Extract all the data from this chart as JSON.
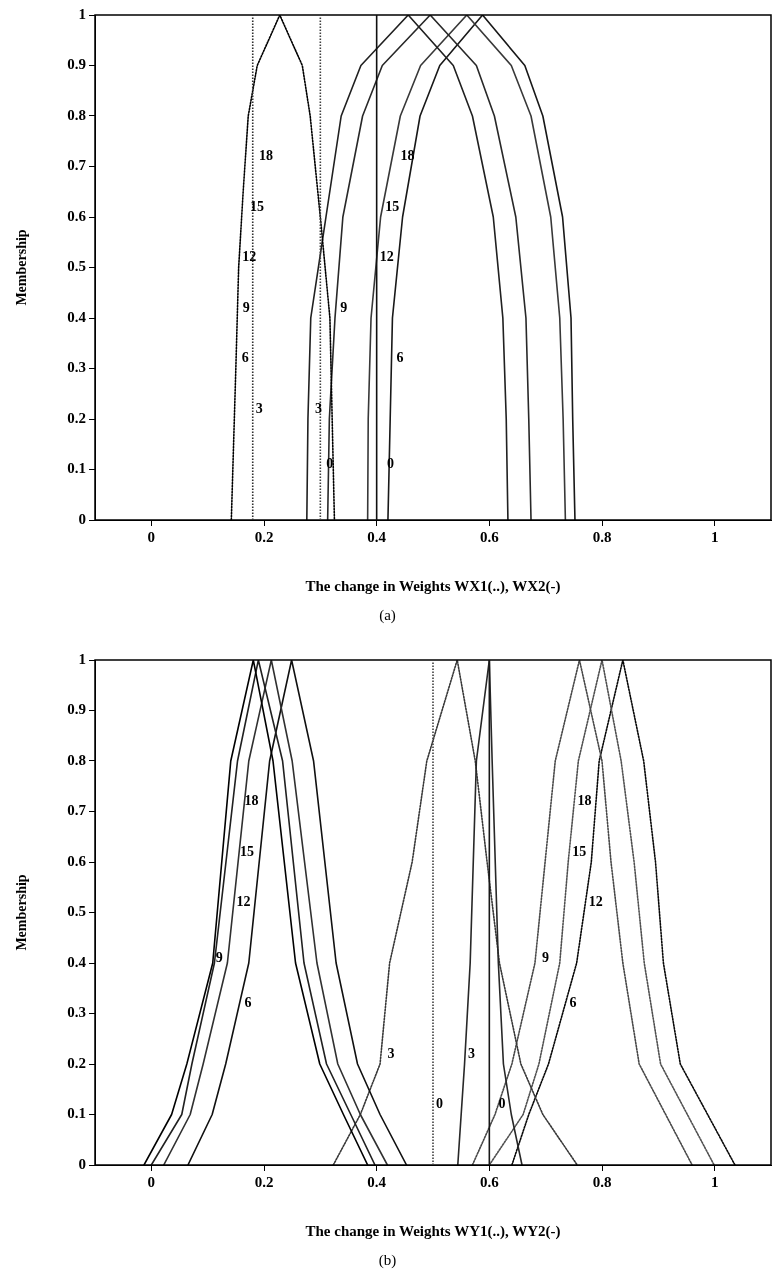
{
  "chart_data": [
    {
      "type": "line",
      "xlabel": "The change in Weights WX1(..), WX2(-)",
      "ylabel": "Membership",
      "xlim": [
        -0.1,
        1.1
      ],
      "ylim": [
        0,
        1
      ],
      "xticks": [
        0,
        0.2,
        0.4,
        0.6,
        0.8,
        1
      ],
      "yticks": [
        0,
        0.1,
        0.2,
        0.3,
        0.4,
        0.5,
        0.6,
        0.7,
        0.8,
        0.9,
        1
      ],
      "series": [
        {
          "color": "#000000",
          "line_style": "dotted",
          "x": [
            0.142,
            0.15,
            0.155,
            0.163,
            0.172,
            0.188,
            0.228,
            0.268,
            0.282,
            0.3,
            0.317,
            0.325
          ],
          "values": [
            0,
            0.3,
            0.5,
            0.65,
            0.8,
            0.9,
            1,
            0.9,
            0.8,
            0.6,
            0.4,
            0
          ]
        },
        {
          "color": "#202020",
          "line_style": "solid",
          "x": [
            0.276,
            0.278,
            0.283,
            0.31,
            0.337,
            0.372,
            0.456,
            0.536,
            0.57,
            0.607,
            0.624,
            0.63,
            0.633
          ],
          "values": [
            0,
            0.2,
            0.4,
            0.6,
            0.8,
            0.9,
            1,
            0.9,
            0.8,
            0.6,
            0.4,
            0.2,
            0
          ]
        },
        {
          "color": "#282828",
          "line_style": "solid",
          "x": [
            0.313,
            0.316,
            0.326,
            0.34,
            0.375,
            0.41,
            0.495,
            0.577,
            0.609,
            0.647,
            0.665,
            0.67,
            0.674
          ],
          "values": [
            0,
            0.2,
            0.4,
            0.6,
            0.8,
            0.9,
            1,
            0.9,
            0.8,
            0.6,
            0.4,
            0.2,
            0
          ]
        },
        {
          "color": "#383838",
          "line_style": "solid",
          "x": [
            0.384,
            0.385,
            0.39,
            0.407,
            0.442,
            0.478,
            0.56,
            0.639,
            0.674,
            0.709,
            0.725,
            0.731,
            0.735
          ],
          "values": [
            0,
            0.2,
            0.4,
            0.6,
            0.8,
            0.9,
            1,
            0.9,
            0.8,
            0.6,
            0.4,
            0.2,
            0
          ]
        },
        {
          "color": "#181818",
          "line_style": "solid",
          "x": [
            0.42,
            0.424,
            0.428,
            0.446,
            0.477,
            0.512,
            0.588,
            0.663,
            0.695,
            0.73,
            0.745,
            0.748,
            0.752
          ],
          "values": [
            0,
            0.2,
            0.4,
            0.6,
            0.8,
            0.9,
            1,
            0.9,
            0.8,
            0.6,
            0.4,
            0.2,
            0
          ]
        }
      ],
      "ref_lines": [
        {
          "axis": "x",
          "value": 0.18,
          "color": "#303030",
          "line_style": "dotted"
        },
        {
          "axis": "x",
          "value": 0.3,
          "color": "#404040",
          "line_style": "dotted"
        },
        {
          "axis": "x",
          "value": 0.4,
          "color": "#101010",
          "line_style": "solid"
        }
      ],
      "annotations": [
        {
          "text": "18",
          "x": 0.186,
          "y": 0.72
        },
        {
          "text": "15",
          "x": 0.17,
          "y": 0.62
        },
        {
          "text": "12",
          "x": 0.156,
          "y": 0.52
        },
        {
          "text": "9",
          "x": 0.157,
          "y": 0.42
        },
        {
          "text": "6",
          "x": 0.155,
          "y": 0.32
        },
        {
          "text": "3",
          "x": 0.18,
          "y": 0.22
        },
        {
          "text": "3",
          "x": 0.285,
          "y": 0.22
        },
        {
          "text": "0",
          "x": 0.305,
          "y": 0.11
        },
        {
          "text": "9",
          "x": 0.33,
          "y": 0.42
        },
        {
          "text": "18",
          "x": 0.437,
          "y": 0.72
        },
        {
          "text": "15",
          "x": 0.41,
          "y": 0.62
        },
        {
          "text": "12",
          "x": 0.4,
          "y": 0.52
        },
        {
          "text": "6",
          "x": 0.43,
          "y": 0.32
        },
        {
          "text": "0",
          "x": 0.413,
          "y": 0.11
        },
        "(a)"
      ]
    },
    {
      "type": "line",
      "xlabel": "The change in Weights WY1(..), WY2(-)",
      "ylabel": "Membership",
      "xlim": [
        -0.1,
        1.1
      ],
      "ylim": [
        0,
        1
      ],
      "xticks": [
        0,
        0.2,
        0.4,
        0.6,
        0.8,
        1
      ],
      "yticks": [
        0,
        0.1,
        0.2,
        0.3,
        0.4,
        0.5,
        0.6,
        0.7,
        0.8,
        0.9,
        1
      ],
      "series": [
        {
          "color": "#000000",
          "line_style": "solid",
          "x": [
            -0.013,
            0.036,
            0.063,
            0.109,
            0.141,
            0.181,
            0.216,
            0.256,
            0.299,
            0.341,
            0.384
          ],
          "values": [
            0,
            0.1,
            0.2,
            0.4,
            0.8,
            1,
            0.8,
            0.4,
            0.2,
            0.1,
            0
          ]
        },
        {
          "color": "#202020",
          "line_style": "solid",
          "x": [
            0,
            0.054,
            0.072,
            0.112,
            0.153,
            0.19,
            0.233,
            0.271,
            0.311,
            0.354,
            0.397
          ],
          "values": [
            0,
            0.1,
            0.2,
            0.4,
            0.8,
            1,
            0.8,
            0.4,
            0.2,
            0.1,
            0
          ]
        },
        {
          "color": "#303030",
          "line_style": "solid",
          "x": [
            0.022,
            0.069,
            0.092,
            0.135,
            0.173,
            0.213,
            0.25,
            0.294,
            0.331,
            0.371,
            0.419
          ],
          "values": [
            0,
            0.1,
            0.2,
            0.4,
            0.8,
            1,
            0.8,
            0.4,
            0.2,
            0.1,
            0
          ]
        },
        {
          "color": "#101010",
          "line_style": "solid",
          "x": [
            0.065,
            0.108,
            0.132,
            0.173,
            0.21,
            0.249,
            0.288,
            0.328,
            0.366,
            0.406,
            0.453
          ],
          "values": [
            0,
            0.1,
            0.2,
            0.4,
            0.8,
            1,
            0.8,
            0.4,
            0.2,
            0.1,
            0
          ]
        },
        {
          "color": "#282828",
          "line_style": "solid",
          "x": [
            0.544,
            0.556,
            0.566,
            0.577,
            0.6,
            0.605,
            0.616,
            0.625,
            0.639,
            0.658
          ],
          "values": [
            0,
            0.2,
            0.4,
            0.8,
            1,
            0.8,
            0.4,
            0.2,
            0.1,
            0
          ]
        },
        {
          "color": "#383838",
          "line_style": "dotted",
          "x": [
            0.323,
            0.371,
            0.406,
            0.423,
            0.463,
            0.489,
            0.543,
            0.575,
            0.596,
            0.618,
            0.656,
            0.695,
            0.756
          ],
          "values": [
            0,
            0.1,
            0.2,
            0.4,
            0.6,
            0.8,
            1,
            0.8,
            0.6,
            0.4,
            0.2,
            0.1,
            0
          ]
        },
        {
          "color": "#484848",
          "line_style": "dotted",
          "x": [
            0.57,
            0.61,
            0.64,
            0.681,
            0.699,
            0.717,
            0.76,
            0.8,
            0.816,
            0.837,
            0.866,
            0.96
          ],
          "values": [
            0,
            0.1,
            0.2,
            0.4,
            0.6,
            0.8,
            1,
            0.8,
            0.6,
            0.4,
            0.2,
            0
          ]
        },
        {
          "color": "#505050",
          "line_style": "dotted",
          "x": [
            0.6,
            0.66,
            0.688,
            0.725,
            0.74,
            0.758,
            0.8,
            0.834,
            0.857,
            0.875,
            0.904,
            0.999
          ],
          "values": [
            0,
            0.1,
            0.2,
            0.4,
            0.6,
            0.8,
            1,
            0.8,
            0.6,
            0.4,
            0.2,
            0
          ]
        },
        {
          "color": "#080808",
          "line_style": "dotted",
          "x": [
            0.64,
            0.67,
            0.705,
            0.755,
            0.781,
            0.795,
            0.837,
            0.874,
            0.895,
            0.909,
            0.939,
            1.036
          ],
          "values": [
            0,
            0.1,
            0.2,
            0.4,
            0.6,
            0.8,
            1,
            0.8,
            0.6,
            0.4,
            0.2,
            0
          ]
        }
      ],
      "ref_lines": [
        {
          "axis": "x",
          "value": 0.5,
          "color": "#404040",
          "line_style": "dotted"
        },
        {
          "axis": "x",
          "value": 0.6,
          "color": "#181818",
          "line_style": "solid"
        }
      ],
      "annotations": [
        {
          "text": "18",
          "x": 0.16,
          "y": 0.72
        },
        {
          "text": "15",
          "x": 0.152,
          "y": 0.62
        },
        {
          "text": "12",
          "x": 0.146,
          "y": 0.52
        },
        {
          "text": "9",
          "x": 0.109,
          "y": 0.41
        },
        {
          "text": "6",
          "x": 0.16,
          "y": 0.32
        },
        {
          "text": "3",
          "x": 0.414,
          "y": 0.22
        },
        {
          "text": "0",
          "x": 0.5,
          "y": 0.12
        },
        {
          "text": "3",
          "x": 0.557,
          "y": 0.22
        },
        {
          "text": "0",
          "x": 0.611,
          "y": 0.12
        },
        {
          "text": "18",
          "x": 0.751,
          "y": 0.72
        },
        {
          "text": "15",
          "x": 0.742,
          "y": 0.62
        },
        {
          "text": "12",
          "x": 0.771,
          "y": 0.52
        },
        {
          "text": "9",
          "x": 0.688,
          "y": 0.41
        },
        {
          "text": "6",
          "x": 0.737,
          "y": 0.32
        },
        "(b)"
      ]
    }
  ]
}
